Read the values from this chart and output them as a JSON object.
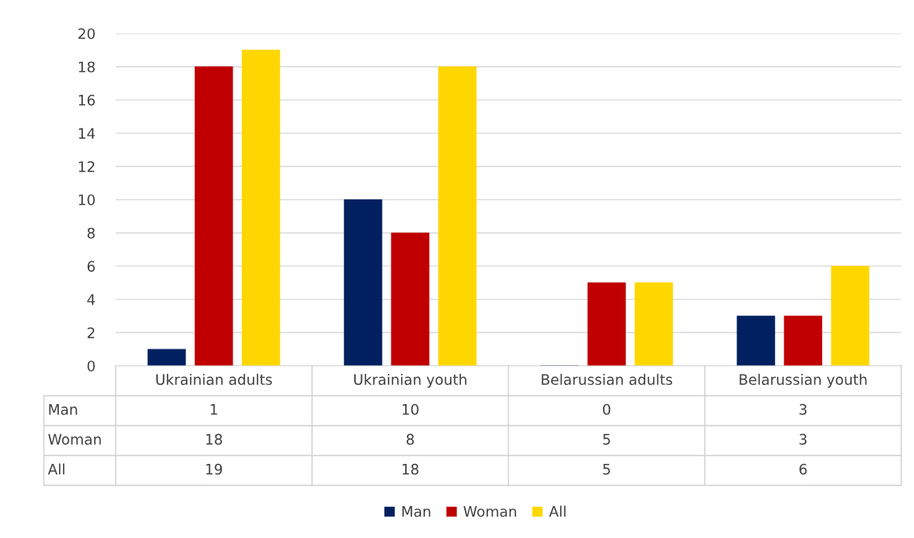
{
  "chart_data": {
    "type": "bar",
    "categories": [
      "Ukrainian adults",
      "Ukrainian youth",
      "Belarussian adults",
      "Belarussian youth"
    ],
    "series": [
      {
        "name": "Man",
        "color": "#002060",
        "values": [
          1,
          10,
          0,
          3
        ]
      },
      {
        "name": "Woman",
        "color": "#c00000",
        "values": [
          18,
          8,
          5,
          3
        ]
      },
      {
        "name": "All",
        "color": "#ffd700",
        "values": [
          19,
          18,
          5,
          6
        ]
      }
    ],
    "ylim": [
      0,
      20
    ],
    "yticks": [
      0,
      2,
      4,
      6,
      8,
      10,
      12,
      14,
      16,
      18,
      20
    ],
    "grid": "y",
    "legend": "bottom",
    "data_labels": true
  }
}
